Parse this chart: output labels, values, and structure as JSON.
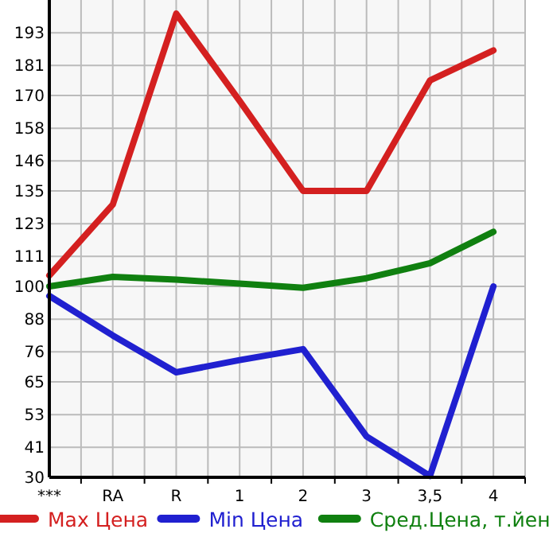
{
  "chart_data": {
    "type": "line",
    "categories": [
      "***",
      "RA",
      "R",
      "1",
      "2",
      "3",
      "3,5",
      "4"
    ],
    "series": [
      {
        "name": "Max Цена",
        "color": "#d42020",
        "values": [
          104,
          130,
          200,
          168,
          135,
          135,
          175.5,
          186.5
        ]
      },
      {
        "name": "Min Цена",
        "color": "#2020d0",
        "values": [
          96.5,
          82,
          68.5,
          73,
          77,
          45,
          30.5,
          100
        ]
      },
      {
        "name": "Сред.Цена, т.йен",
        "color": "#108010",
        "values": [
          100,
          103.5,
          102.5,
          101,
          99.5,
          103,
          108.5,
          120
        ]
      }
    ],
    "ylim": [
      30,
      205
    ],
    "yticks": [
      30,
      41,
      53,
      65,
      76,
      88,
      100,
      111,
      123,
      135,
      146,
      158,
      170,
      181,
      193
    ],
    "grid": true,
    "legend": "bottom",
    "marker": "none",
    "line_style": "solid"
  }
}
